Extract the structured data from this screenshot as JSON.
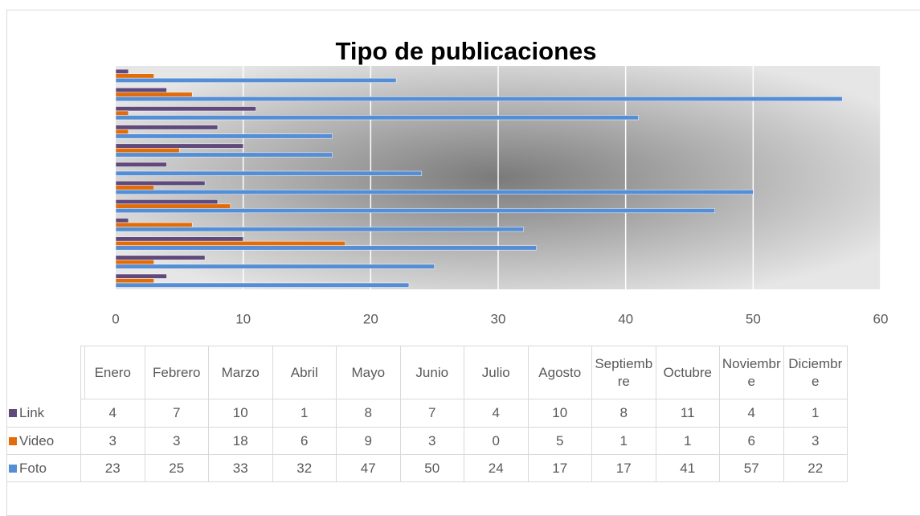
{
  "chart_data": {
    "type": "bar",
    "orientation": "horizontal",
    "title": "Tipo de publicaciones",
    "categories": [
      "Enero",
      "Febrero",
      "Marzo",
      "Abril",
      "Mayo",
      "Junio",
      "Julio",
      "Agosto",
      "Septiembre",
      "Octubre",
      "Noviembre",
      "Diciembre"
    ],
    "series": [
      {
        "name": "Link",
        "color": "#604a7b",
        "values": [
          4,
          7,
          10,
          1,
          8,
          7,
          4,
          10,
          8,
          11,
          4,
          1
        ]
      },
      {
        "name": "Video",
        "color": "#e36c0a",
        "values": [
          3,
          3,
          18,
          6,
          9,
          3,
          0,
          5,
          1,
          1,
          6,
          3
        ]
      },
      {
        "name": "Foto",
        "color": "#558ed5",
        "values": [
          23,
          25,
          33,
          32,
          47,
          50,
          24,
          17,
          17,
          41,
          57,
          22
        ]
      }
    ],
    "xlim": [
      0,
      60
    ],
    "xticks": [
      0,
      10,
      20,
      30,
      40,
      50,
      60
    ],
    "grid": true
  }
}
